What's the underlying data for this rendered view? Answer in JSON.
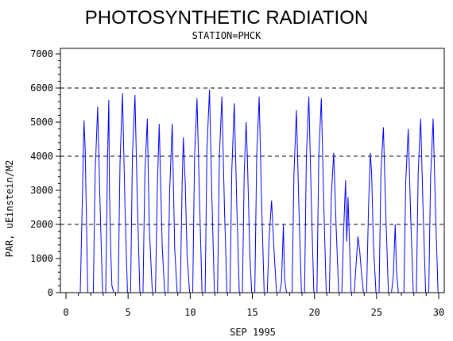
{
  "chart_data": {
    "type": "line",
    "title": "PHOTOSYNTHETIC RADIATION",
    "subtitle": "STATION=PHCK",
    "xlabel": "SEP 1995",
    "ylabel": "PAR, uEinstein/M2",
    "xlim": [
      0,
      30
    ],
    "ylim": [
      0,
      7000
    ],
    "x_ticks": [
      "0",
      "5",
      "10",
      "15",
      "20",
      "25",
      "30"
    ],
    "y_ticks": [
      "0",
      "1000",
      "2000",
      "3000",
      "4000",
      "5000",
      "6000",
      "7000"
    ],
    "reference_lines_y": [
      2000,
      4000,
      6000
    ],
    "line_color": "#0000ff",
    "series": [
      {
        "x": [
          1.0,
          1.15,
          1.3,
          1.45,
          1.55,
          1.75,
          1.9,
          2.2,
          2.35,
          2.55,
          2.75,
          2.95,
          3.2,
          3.35,
          3.45,
          3.5,
          3.6,
          3.7,
          3.85,
          4.2,
          4.35,
          4.55,
          4.75,
          4.95,
          5.2,
          5.35,
          5.55,
          5.75,
          5.95,
          6.2,
          6.35,
          6.55,
          6.7,
          6.95,
          7.2,
          7.35,
          7.5,
          7.75,
          7.95,
          8.2,
          8.35,
          8.55,
          8.75,
          8.95,
          9.2,
          9.35,
          9.45,
          9.6,
          9.75,
          9.95,
          10.2,
          10.35,
          10.55,
          10.75,
          10.95,
          11.2,
          11.35,
          11.55,
          11.75,
          11.95,
          12.2,
          12.35,
          12.55,
          12.75,
          12.95,
          13.2,
          13.35,
          13.55,
          13.75,
          13.95,
          14.2,
          14.35,
          14.5,
          14.6,
          14.8,
          14.95,
          15.2,
          15.35,
          15.55,
          15.75,
          15.95,
          16.2,
          16.35,
          16.55,
          16.75,
          16.95,
          17.2,
          17.35,
          17.5,
          17.6,
          17.75,
          17.95,
          18.2,
          18.35,
          18.55,
          18.75,
          18.95,
          19.2,
          19.35,
          19.55,
          19.75,
          19.95,
          20.2,
          20.35,
          20.55,
          20.75,
          20.95,
          21.2,
          21.35,
          21.55,
          21.75,
          21.95,
          22.2,
          22.35,
          22.5,
          22.6,
          22.7,
          22.95,
          23.2,
          23.35,
          23.5,
          23.65,
          23.8,
          23.95,
          24.2,
          24.35,
          24.5,
          24.6,
          24.75,
          24.95,
          25.2,
          25.35,
          25.55,
          25.75,
          25.95,
          26.2,
          26.35,
          26.5,
          26.6,
          26.75,
          26.95,
          27.2,
          27.35,
          27.55,
          27.75,
          27.95,
          28.2,
          28.35,
          28.55,
          28.75,
          28.95,
          29.2,
          29.35,
          29.55,
          29.75,
          29.95
        ],
        "y": [
          0,
          0,
          2400,
          5050,
          4200,
          0,
          0,
          0,
          3500,
          5450,
          2500,
          0,
          0,
          4000,
          5650,
          3000,
          1300,
          200,
          0,
          0,
          3800,
          5850,
          2500,
          0,
          0,
          4000,
          5800,
          2600,
          0,
          0,
          3500,
          5100,
          2000,
          0,
          0,
          3000,
          4950,
          1300,
          0,
          0,
          3000,
          4950,
          1300,
          0,
          0,
          3200,
          4550,
          3200,
          1100,
          0,
          0,
          4000,
          5700,
          2700,
          0,
          0,
          4200,
          5950,
          2700,
          0,
          0,
          4000,
          5750,
          2600,
          0,
          0,
          3600,
          5550,
          2500,
          0,
          0,
          3500,
          5000,
          4000,
          1100,
          0,
          0,
          4000,
          5750,
          2600,
          0,
          0,
          1600,
          2700,
          1200,
          0,
          0,
          300,
          2000,
          400,
          0,
          0,
          0,
          3500,
          5350,
          2500,
          0,
          0,
          4000,
          5750,
          2600,
          0,
          0,
          4000,
          5700,
          2600,
          0,
          0,
          2800,
          4100,
          1900,
          0,
          0,
          1800,
          3300,
          1500,
          2800,
          0,
          0,
          800,
          1650,
          1200,
          500,
          0,
          0,
          2500,
          4100,
          3500,
          1400,
          0,
          0,
          3500,
          4850,
          2200,
          0,
          0,
          500,
          2000,
          700,
          0,
          0,
          0,
          3300,
          4800,
          2200,
          0,
          0,
          3500,
          5100,
          2300,
          0,
          0,
          3400,
          5100,
          2300,
          0
        ]
      }
    ]
  }
}
